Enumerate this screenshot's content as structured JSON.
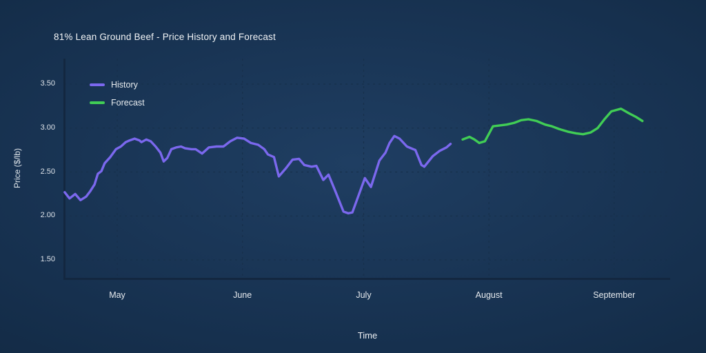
{
  "title": "81% Lean Ground Beef - Price History and Forecast",
  "legend": {
    "items": [
      {
        "label": "History",
        "color": "#7b68ee"
      },
      {
        "label": "Forecast",
        "color": "#41cd55"
      }
    ]
  },
  "axis_titles": {
    "x": "Time",
    "y": "Price ($/lb)"
  },
  "colors": {
    "background_center": "#1f3e62",
    "background_edge": "#0d2136",
    "history_line": "#7b68ee",
    "forecast_line": "#41cd55",
    "grid": "#17304b",
    "axis": "#132740",
    "text_primary": "#f3f5f7",
    "text_secondary": "#dde3e9"
  },
  "chart_data": {
    "type": "line",
    "title": "81% Lean Ground Beef - Price History and Forecast",
    "xlabel": "Time",
    "ylabel": "Price ($/lb)",
    "x_unit": "days (0 = first history point, mid-April; May 1 = day 13)",
    "xlim_days": [
      0,
      150
    ],
    "ylim": [
      1.29,
      3.79
    ],
    "y_ticks": [
      3.5,
      3.0,
      2.5,
      2.0,
      1.5
    ],
    "x_ticks": [
      {
        "label": "May",
        "day": 13
      },
      {
        "label": "June",
        "day": 44
      },
      {
        "label": "July",
        "day": 74
      },
      {
        "label": "August",
        "day": 105
      },
      {
        "label": "September",
        "day": 136
      }
    ],
    "grid": {
      "horizontal": "dashed at each y tick",
      "vertical": "dashed at each month tick"
    },
    "legend_position": "upper-left inside plot",
    "series": [
      {
        "name": "History",
        "color": "#7b68ee",
        "points": [
          [
            0,
            2.27
          ],
          [
            1.2,
            2.2
          ],
          [
            2.6,
            2.25
          ],
          [
            3.9,
            2.18
          ],
          [
            5.3,
            2.22
          ],
          [
            6.3,
            2.28
          ],
          [
            7.4,
            2.36
          ],
          [
            8.2,
            2.48
          ],
          [
            9.1,
            2.51
          ],
          [
            9.9,
            2.6
          ],
          [
            11.3,
            2.67
          ],
          [
            12.7,
            2.76
          ],
          [
            13.9,
            2.79
          ],
          [
            15.1,
            2.84
          ],
          [
            16.1,
            2.86
          ],
          [
            17.3,
            2.88
          ],
          [
            18.5,
            2.86
          ],
          [
            19.0,
            2.84
          ],
          [
            20.2,
            2.87
          ],
          [
            21.3,
            2.85
          ],
          [
            22.5,
            2.79
          ],
          [
            23.7,
            2.72
          ],
          [
            24.5,
            2.62
          ],
          [
            25.4,
            2.66
          ],
          [
            26.4,
            2.76
          ],
          [
            27.6,
            2.78
          ],
          [
            28.8,
            2.79
          ],
          [
            29.8,
            2.77
          ],
          [
            31.4,
            2.76
          ],
          [
            32.4,
            2.76
          ],
          [
            34.0,
            2.71
          ],
          [
            35.7,
            2.78
          ],
          [
            37.6,
            2.79
          ],
          [
            39.3,
            2.79
          ],
          [
            41.0,
            2.85
          ],
          [
            42.7,
            2.89
          ],
          [
            44.4,
            2.88
          ],
          [
            46.1,
            2.83
          ],
          [
            47.9,
            2.81
          ],
          [
            49.4,
            2.76
          ],
          [
            50.3,
            2.7
          ],
          [
            51.8,
            2.67
          ],
          [
            53.0,
            2.45
          ],
          [
            54.7,
            2.54
          ],
          [
            56.4,
            2.64
          ],
          [
            58.0,
            2.65
          ],
          [
            59.3,
            2.58
          ],
          [
            61.1,
            2.56
          ],
          [
            62.3,
            2.57
          ],
          [
            64.0,
            2.41
          ],
          [
            65.3,
            2.47
          ],
          [
            67.1,
            2.27
          ],
          [
            69.0,
            2.05
          ],
          [
            70.2,
            2.03
          ],
          [
            71.2,
            2.04
          ],
          [
            74.3,
            2.43
          ],
          [
            75.8,
            2.33
          ],
          [
            77.9,
            2.63
          ],
          [
            79.4,
            2.72
          ],
          [
            80.4,
            2.83
          ],
          [
            81.6,
            2.91
          ],
          [
            82.9,
            2.88
          ],
          [
            84.7,
            2.79
          ],
          [
            86.3,
            2.76
          ],
          [
            86.8,
            2.75
          ],
          [
            88.3,
            2.58
          ],
          [
            89.0,
            2.56
          ],
          [
            91.1,
            2.68
          ],
          [
            92.8,
            2.74
          ],
          [
            94.5,
            2.78
          ],
          [
            95.5,
            2.82
          ]
        ]
      },
      {
        "name": "Forecast",
        "color": "#41cd55",
        "points": [
          [
            98.5,
            2.87
          ],
          [
            100.2,
            2.9
          ],
          [
            101.4,
            2.87
          ],
          [
            102.6,
            2.83
          ],
          [
            104.0,
            2.85
          ],
          [
            106.0,
            3.02
          ],
          [
            107.7,
            3.03
          ],
          [
            109.4,
            3.04
          ],
          [
            111.3,
            3.06
          ],
          [
            113.0,
            3.09
          ],
          [
            114.8,
            3.1
          ],
          [
            116.8,
            3.08
          ],
          [
            118.9,
            3.04
          ],
          [
            120.6,
            3.02
          ],
          [
            122.3,
            2.99
          ],
          [
            124.5,
            2.96
          ],
          [
            126.6,
            2.94
          ],
          [
            128.3,
            2.93
          ],
          [
            130.2,
            2.95
          ],
          [
            131.9,
            3.0
          ],
          [
            133.6,
            3.1
          ],
          [
            135.3,
            3.19
          ],
          [
            137.7,
            3.22
          ],
          [
            139.6,
            3.17
          ],
          [
            141.3,
            3.13
          ],
          [
            143.0,
            3.08
          ]
        ]
      }
    ]
  }
}
